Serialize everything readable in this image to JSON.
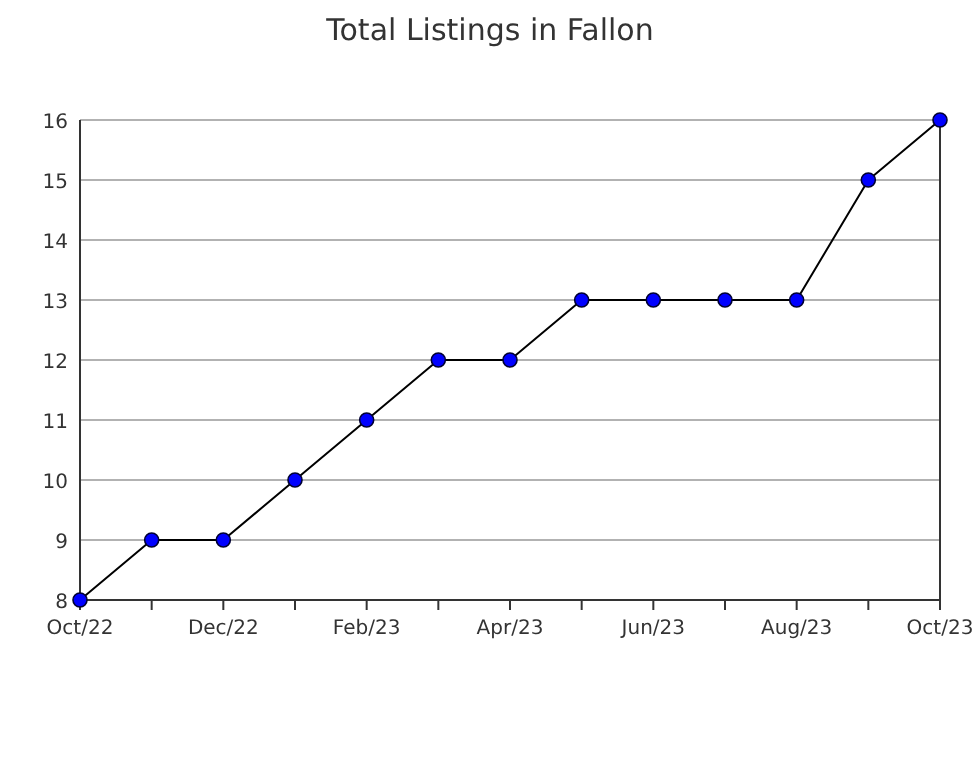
{
  "chart_data": {
    "type": "line",
    "title": "Total Listings in Fallon",
    "categories": [
      "Oct/22",
      null,
      "Dec/22",
      null,
      "Feb/23",
      null,
      "Apr/23",
      null,
      "Jun/23",
      null,
      "Aug/23",
      null,
      "Oct/23"
    ],
    "series": [
      {
        "color": "#0000ff",
        "values": [
          8,
          9,
          9,
          10,
          11,
          12,
          12,
          13,
          13,
          13,
          13,
          15,
          16
        ]
      }
    ],
    "ylim": [
      8,
      16
    ],
    "yticks": [
      8,
      9,
      10,
      11,
      12,
      13,
      14,
      15,
      16
    ],
    "grid": "y",
    "marker": "circle",
    "line_style": "solid"
  }
}
